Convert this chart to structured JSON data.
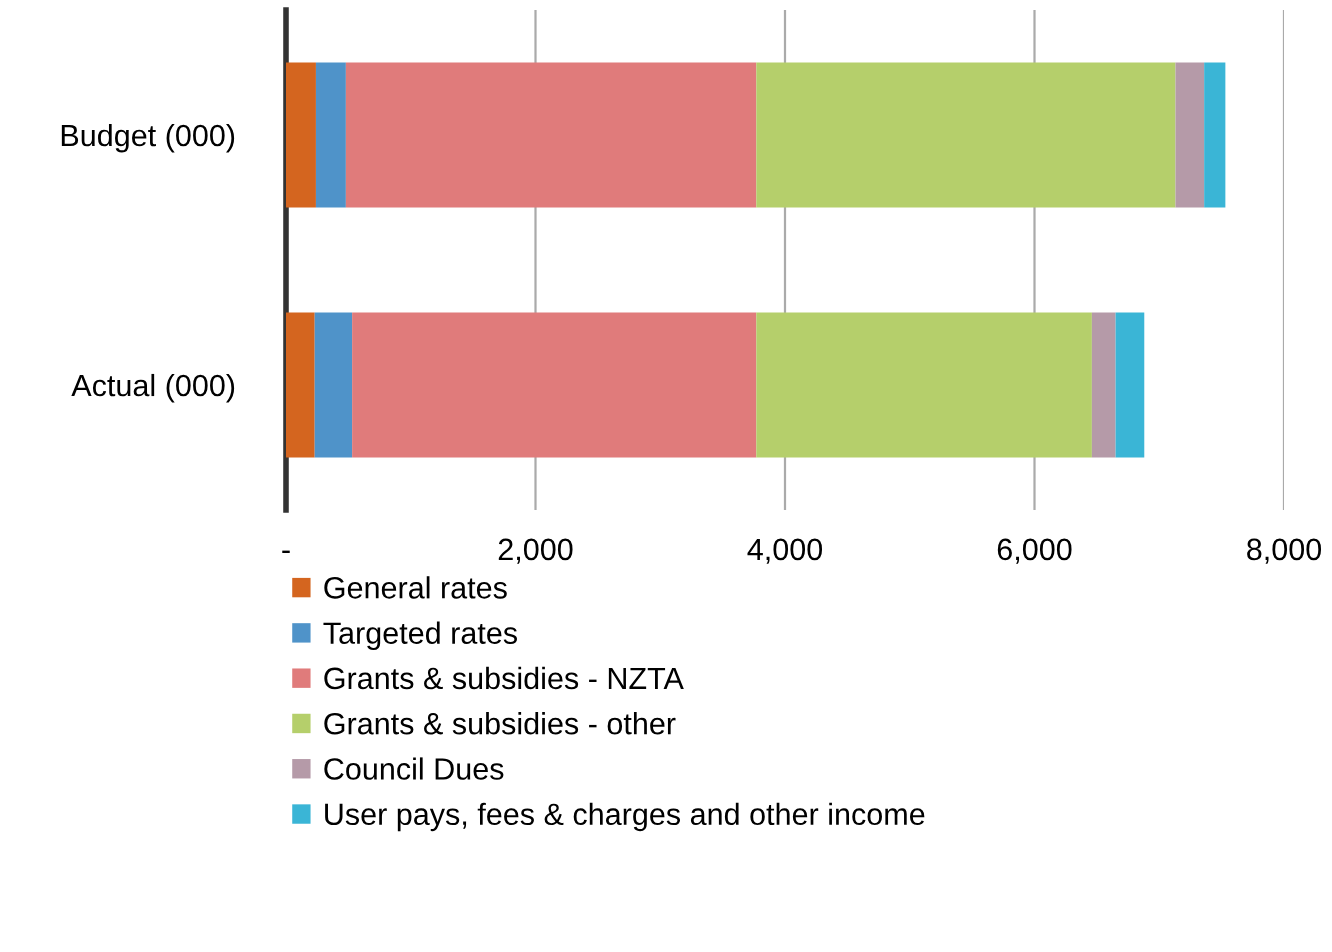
{
  "chart_data": {
    "type": "bar",
    "orientation": "horizontal",
    "stacked": true,
    "categories": [
      "Budget (000)",
      "Actual (000)"
    ],
    "series": [
      {
        "name": "General rates",
        "color": "#d4651f",
        "values": [
          240,
          230
        ]
      },
      {
        "name": "Targeted rates",
        "color": "#4f93c9",
        "values": [
          240,
          300
        ]
      },
      {
        "name": "Grants & subsidies - NZTA",
        "color": "#e07b7b",
        "values": [
          3290,
          3240
        ]
      },
      {
        "name": "Grants & subsidies - other",
        "color": "#b5cf6b",
        "values": [
          3360,
          2690
        ]
      },
      {
        "name": "Council Dues",
        "color": "#b59aa8",
        "values": [
          230,
          190
        ]
      },
      {
        "name": "User pays, fees & charges and other income",
        "color": "#3ab5d6",
        "values": [
          170,
          230
        ]
      }
    ],
    "xlim": [
      0,
      8000
    ],
    "xticks": [
      {
        "value": 0,
        "label": "-"
      },
      {
        "value": 2000,
        "label": "2,000"
      },
      {
        "value": 4000,
        "label": "4,000"
      },
      {
        "value": 6000,
        "label": "6,000"
      },
      {
        "value": 8000,
        "label": "8,000"
      }
    ],
    "grid": "x",
    "legend": "bottom"
  }
}
